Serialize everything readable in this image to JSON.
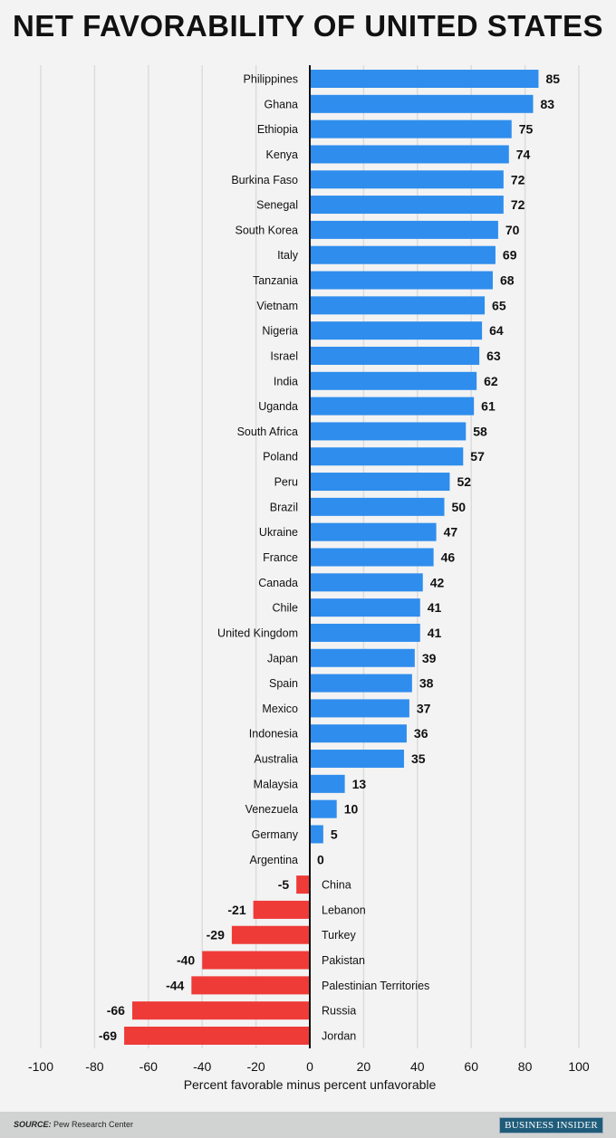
{
  "chart_data": {
    "type": "bar",
    "orientation": "horizontal",
    "title": "NET FAVORABILITY OF UNITED STATES",
    "xlabel": "Percent favorable minus percent unfavorable",
    "xlim": [
      -100,
      100
    ],
    "xticks": [
      -100,
      -80,
      -60,
      -40,
      -20,
      0,
      20,
      40,
      60,
      80,
      100
    ],
    "grid": true,
    "categories": [
      "Philippines",
      "Ghana",
      "Ethiopia",
      "Kenya",
      "Burkina Faso",
      "Senegal",
      "South Korea",
      "Italy",
      "Tanzania",
      "Vietnam",
      "Nigeria",
      "Israel",
      "India",
      "Uganda",
      "South Africa",
      "Poland",
      "Peru",
      "Brazil",
      "Ukraine",
      "France",
      "Canada",
      "Chile",
      "United Kingdom",
      "Japan",
      "Spain",
      "Mexico",
      "Indonesia",
      "Australia",
      "Malaysia",
      "Venezuela",
      "Germany",
      "Argentina",
      "China",
      "Lebanon",
      "Turkey",
      "Pakistan",
      "Palestinian Territories",
      "Russia",
      "Jordan"
    ],
    "values": [
      85,
      83,
      75,
      74,
      72,
      72,
      70,
      69,
      68,
      65,
      64,
      63,
      62,
      61,
      58,
      57,
      52,
      50,
      47,
      46,
      42,
      41,
      41,
      39,
      38,
      37,
      36,
      35,
      13,
      10,
      5,
      0,
      -5,
      -21,
      -29,
      -40,
      -44,
      -66,
      -69
    ],
    "colors": {
      "positive": "#2f8ded",
      "negative": "#ee3b38"
    }
  },
  "footer": {
    "source_label": "SOURCE:",
    "source_text": " Pew Research Center",
    "logo": "BUSINESS INSIDER"
  }
}
